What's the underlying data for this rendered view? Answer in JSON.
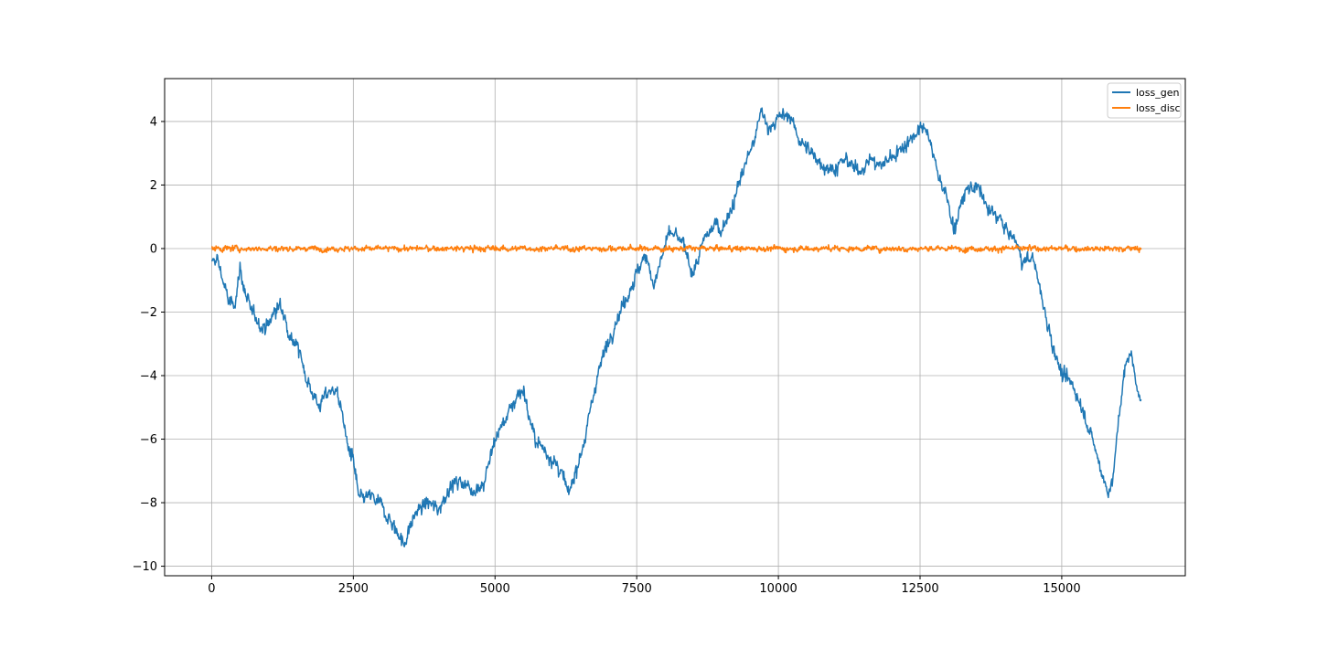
{
  "chart_data": {
    "type": "line",
    "title": "",
    "xlabel": "",
    "ylabel": "",
    "xlim": [
      -830,
      17180
    ],
    "ylim": [
      -10.3,
      5.35
    ],
    "grid": true,
    "legend_position": "top-right",
    "x_ticks": [
      0,
      2500,
      5000,
      7500,
      10000,
      12500,
      15000
    ],
    "x_tick_labels": [
      "0",
      "2500",
      "5000",
      "7500",
      "10000",
      "12500",
      "15000"
    ],
    "y_ticks": [
      -10,
      -8,
      -6,
      -4,
      -2,
      0,
      2,
      4
    ],
    "y_tick_labels": [
      "−10",
      "−8",
      "−6",
      "−4",
      "−2",
      "0",
      "2",
      "4"
    ],
    "x_max_step": 16400,
    "series": [
      {
        "name": "loss_gen",
        "color": "#1f77b4",
        "noise": 0.15,
        "points": [
          [
            0,
            -0.5
          ],
          [
            100,
            -0.3
          ],
          [
            200,
            -1.0
          ],
          [
            300,
            -1.7
          ],
          [
            400,
            -1.8
          ],
          [
            500,
            -0.6
          ],
          [
            600,
            -1.5
          ],
          [
            700,
            -2.0
          ],
          [
            800,
            -2.2
          ],
          [
            900,
            -2.5
          ],
          [
            1000,
            -2.4
          ],
          [
            1100,
            -2.0
          ],
          [
            1200,
            -1.8
          ],
          [
            1300,
            -2.2
          ],
          [
            1400,
            -2.8
          ],
          [
            1500,
            -3.0
          ],
          [
            1600,
            -3.6
          ],
          [
            1700,
            -4.2
          ],
          [
            1800,
            -4.6
          ],
          [
            1900,
            -5.0
          ],
          [
            2000,
            -4.6
          ],
          [
            2200,
            -4.4
          ],
          [
            2300,
            -5.2
          ],
          [
            2400,
            -6.2
          ],
          [
            2500,
            -6.7
          ],
          [
            2600,
            -7.9
          ],
          [
            2800,
            -7.8
          ],
          [
            3000,
            -8.1
          ],
          [
            3200,
            -8.7
          ],
          [
            3400,
            -9.3
          ],
          [
            3600,
            -8.3
          ],
          [
            3800,
            -8.0
          ],
          [
            4000,
            -8.2
          ],
          [
            4200,
            -7.5
          ],
          [
            4400,
            -7.3
          ],
          [
            4600,
            -7.6
          ],
          [
            4800,
            -7.4
          ],
          [
            5000,
            -6.0
          ],
          [
            5200,
            -5.3
          ],
          [
            5400,
            -4.6
          ],
          [
            5500,
            -4.4
          ],
          [
            5600,
            -5.3
          ],
          [
            5700,
            -6.0
          ],
          [
            5800,
            -6.2
          ],
          [
            6000,
            -6.6
          ],
          [
            6200,
            -7.2
          ],
          [
            6300,
            -7.8
          ],
          [
            6400,
            -7.1
          ],
          [
            6600,
            -5.9
          ],
          [
            6800,
            -4.0
          ],
          [
            7000,
            -2.9
          ],
          [
            7200,
            -2.0
          ],
          [
            7400,
            -1.2
          ],
          [
            7600,
            -0.4
          ],
          [
            7700,
            -0.3
          ],
          [
            7800,
            -1.2
          ],
          [
            8000,
            0.1
          ],
          [
            8100,
            0.5
          ],
          [
            8300,
            0.2
          ],
          [
            8500,
            -0.8
          ],
          [
            8700,
            0.3
          ],
          [
            8900,
            0.8
          ],
          [
            9000,
            0.6
          ],
          [
            9200,
            1.4
          ],
          [
            9400,
            2.6
          ],
          [
            9600,
            3.5
          ],
          [
            9700,
            4.4
          ],
          [
            9800,
            3.8
          ],
          [
            10000,
            4.1
          ],
          [
            10200,
            4.2
          ],
          [
            10400,
            3.3
          ],
          [
            10600,
            3.0
          ],
          [
            10800,
            2.6
          ],
          [
            11000,
            2.5
          ],
          [
            11200,
            2.8
          ],
          [
            11400,
            2.4
          ],
          [
            11600,
            2.8
          ],
          [
            11800,
            2.6
          ],
          [
            12000,
            2.9
          ],
          [
            12200,
            3.2
          ],
          [
            12400,
            3.6
          ],
          [
            12600,
            3.8
          ],
          [
            12800,
            2.5
          ],
          [
            13000,
            1.4
          ],
          [
            13100,
            0.6
          ],
          [
            13300,
            1.8
          ],
          [
            13500,
            2.0
          ],
          [
            13700,
            1.2
          ],
          [
            13900,
            1.0
          ],
          [
            14000,
            0.6
          ],
          [
            14200,
            0.2
          ],
          [
            14300,
            -0.4
          ],
          [
            14500,
            -0.3
          ],
          [
            14700,
            -2.0
          ],
          [
            14900,
            -3.4
          ],
          [
            15000,
            -4.0
          ],
          [
            15200,
            -4.3
          ],
          [
            15400,
            -5.2
          ],
          [
            15600,
            -6.4
          ],
          [
            15800,
            -7.6
          ],
          [
            15900,
            -7.4
          ],
          [
            16000,
            -5.4
          ],
          [
            16100,
            -4.0
          ],
          [
            16200,
            -3.2
          ],
          [
            16300,
            -4.0
          ],
          [
            16400,
            -4.9
          ]
        ]
      },
      {
        "name": "loss_disc",
        "color": "#ff7f0e",
        "noise": 0.06,
        "points": [
          [
            0,
            0.0
          ],
          [
            16400,
            0.0
          ]
        ]
      }
    ]
  }
}
